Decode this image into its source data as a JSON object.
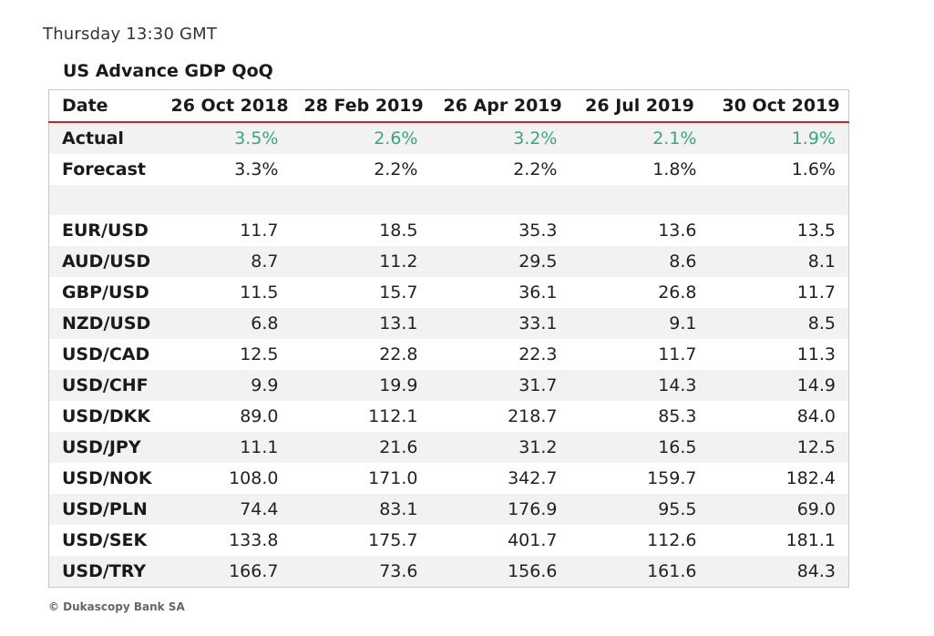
{
  "header": {
    "time_label": "Thursday 13:30 GMT"
  },
  "table": {
    "title": "US Advance GDP QoQ",
    "columns": [
      "Date",
      "26 Oct 2018",
      "28 Feb 2019",
      "26 Apr 2019",
      "26 Jul 2019",
      "30 Oct 2019"
    ],
    "actual": {
      "label": "Actual",
      "values": [
        "3.5%",
        "2.6%",
        "3.2%",
        "2.1%",
        "1.9%"
      ]
    },
    "forecast": {
      "label": "Forecast",
      "values": [
        "3.3%",
        "2.2%",
        "2.2%",
        "1.8%",
        "1.6%"
      ]
    },
    "rows": [
      {
        "label": "EUR/USD",
        "values": [
          "11.7",
          "18.5",
          "35.3",
          "13.6",
          "13.5"
        ]
      },
      {
        "label": "AUD/USD",
        "values": [
          "8.7",
          "11.2",
          "29.5",
          "8.6",
          "8.1"
        ]
      },
      {
        "label": "GBP/USD",
        "values": [
          "11.5",
          "15.7",
          "36.1",
          "26.8",
          "11.7"
        ]
      },
      {
        "label": "NZD/USD",
        "values": [
          "6.8",
          "13.1",
          "33.1",
          "9.1",
          "8.5"
        ]
      },
      {
        "label": "USD/CAD",
        "values": [
          "12.5",
          "22.8",
          "22.3",
          "11.7",
          "11.3"
        ]
      },
      {
        "label": "USD/CHF",
        "values": [
          "9.9",
          "19.9",
          "31.7",
          "14.3",
          "14.9"
        ]
      },
      {
        "label": "USD/DKK",
        "values": [
          "89.0",
          "112.1",
          "218.7",
          "85.3",
          "84.0"
        ]
      },
      {
        "label": "USD/JPY",
        "values": [
          "11.1",
          "21.6",
          "31.2",
          "16.5",
          "12.5"
        ]
      },
      {
        "label": "USD/NOK",
        "values": [
          "108.0",
          "171.0",
          "342.7",
          "159.7",
          "182.4"
        ]
      },
      {
        "label": "USD/PLN",
        "values": [
          "74.4",
          "83.1",
          "176.9",
          "95.5",
          "69.0"
        ]
      },
      {
        "label": "USD/SEK",
        "values": [
          "133.8",
          "175.7",
          "401.7",
          "112.6",
          "181.1"
        ]
      },
      {
        "label": "USD/TRY",
        "values": [
          "166.7",
          "73.6",
          "156.6",
          "161.6",
          "84.3"
        ]
      }
    ]
  },
  "footer": {
    "copyright": "© Dukascopy Bank SA"
  },
  "colors": {
    "actual_value": "#3aa776",
    "header_rule": "#c0282b",
    "stripe": "#f2f2f2"
  }
}
